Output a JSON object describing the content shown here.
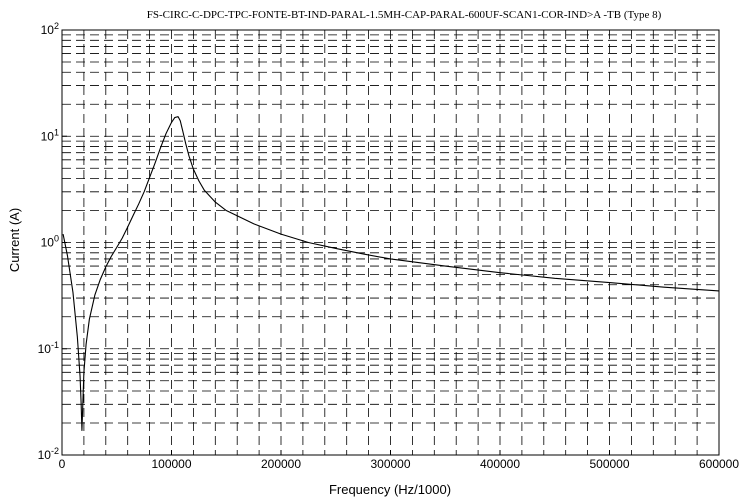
{
  "chart_data": {
    "type": "line",
    "title": "FS-CIRC-C-DPC-TPC-FONTE-BT-IND-PARAL-1.5MH-CAP-PARAL-600UF-SCAN1-COR-IND>A    -TB   (Type 8)",
    "xlabel": "Frequency (Hz/1000)",
    "ylabel": "Current (A)",
    "xlim": [
      0,
      600000
    ],
    "ylim": [
      0.01,
      100
    ],
    "yscale": "log",
    "grid": true,
    "x_ticks": [
      0,
      100000,
      200000,
      300000,
      400000,
      500000,
      600000
    ],
    "x_tick_labels": [
      "0",
      "100000",
      "200000",
      "300000",
      "400000",
      "500000",
      "600000"
    ],
    "y_ticks": [
      {
        "value": 100,
        "base": "10",
        "exp": "2"
      },
      {
        "value": 10,
        "base": "10",
        "exp": "1"
      },
      {
        "value": 1,
        "base": "10",
        "exp": "0"
      },
      {
        "value": 0.1,
        "base": "10",
        "exp": "-1"
      },
      {
        "value": 0.01,
        "base": "10",
        "exp": "-2"
      }
    ],
    "series": [
      {
        "x": [
          1000,
          5000,
          10000,
          14000,
          16500,
          17500,
          18200,
          19000,
          20000,
          22000,
          25000,
          30000,
          35000,
          40000,
          45000,
          50000,
          55000,
          60000,
          65000,
          70000,
          75000,
          80000,
          85000,
          90000,
          95000,
          100000,
          103000,
          106000,
          108000,
          110000,
          113000,
          116000,
          120000,
          125000,
          130000,
          140000,
          150000,
          175000,
          200000,
          225000,
          250000,
          275000,
          300000,
          350000,
          400000,
          450000,
          500000,
          550000,
          600000
        ],
        "values": [
          1.2,
          0.75,
          0.34,
          0.13,
          0.055,
          0.03,
          0.017,
          0.03,
          0.06,
          0.11,
          0.19,
          0.32,
          0.45,
          0.59,
          0.74,
          0.9,
          1.1,
          1.4,
          1.8,
          2.3,
          3.0,
          4.1,
          5.6,
          7.8,
          10.6,
          13.5,
          15.0,
          15.3,
          14.0,
          11.5,
          8.5,
          6.5,
          4.9,
          3.8,
          3.1,
          2.4,
          2.0,
          1.5,
          1.2,
          1.0,
          0.88,
          0.78,
          0.7,
          0.6,
          0.52,
          0.46,
          0.42,
          0.38,
          0.35
        ]
      }
    ]
  }
}
